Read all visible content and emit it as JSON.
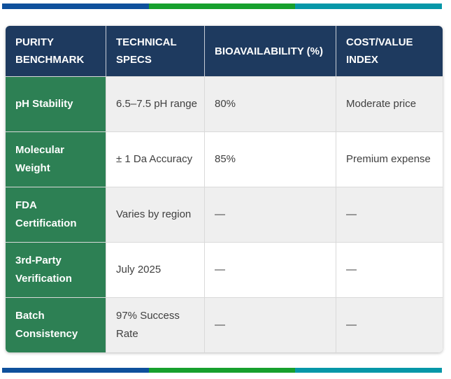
{
  "accent_bars": {
    "segments": [
      {
        "name": "blue-segment",
        "color": "#0e509c"
      },
      {
        "name": "green-segment",
        "color": "#17a02d"
      },
      {
        "name": "teal-segment",
        "color": "#0697a8"
      }
    ]
  },
  "table": {
    "style": {
      "header_bg": "#1e3a5f",
      "row_header_bg": "#2d8054",
      "alt_row_bg": "#efefef",
      "border_color": "#d9d9d9",
      "body_text_color": "#404040"
    },
    "header": {
      "columns": [
        "PURITY BENCHMARK",
        "TECHNICAL SPECS",
        "BIOAVAILABILITY (%)",
        "COST/VALUE INDEX"
      ]
    },
    "rows": [
      {
        "benchmark": "pH Stability",
        "specs": "6.5–7.5 pH range",
        "bioavailability": "80%",
        "cost": "Moderate price"
      },
      {
        "benchmark": "Molecular Weight",
        "specs": "± 1 Da Accuracy",
        "bioavailability": "85%",
        "cost": "Premium expense"
      },
      {
        "benchmark": "FDA Certification",
        "specs": "Varies by region",
        "bioavailability": "—",
        "cost": "—"
      },
      {
        "benchmark": "3rd-Party Verification",
        "specs": "July 2025",
        "bioavailability": "—",
        "cost": "—"
      },
      {
        "benchmark": "Batch Consistency",
        "specs": "97% Success Rate",
        "bioavailability": "—",
        "cost": "—"
      }
    ]
  }
}
